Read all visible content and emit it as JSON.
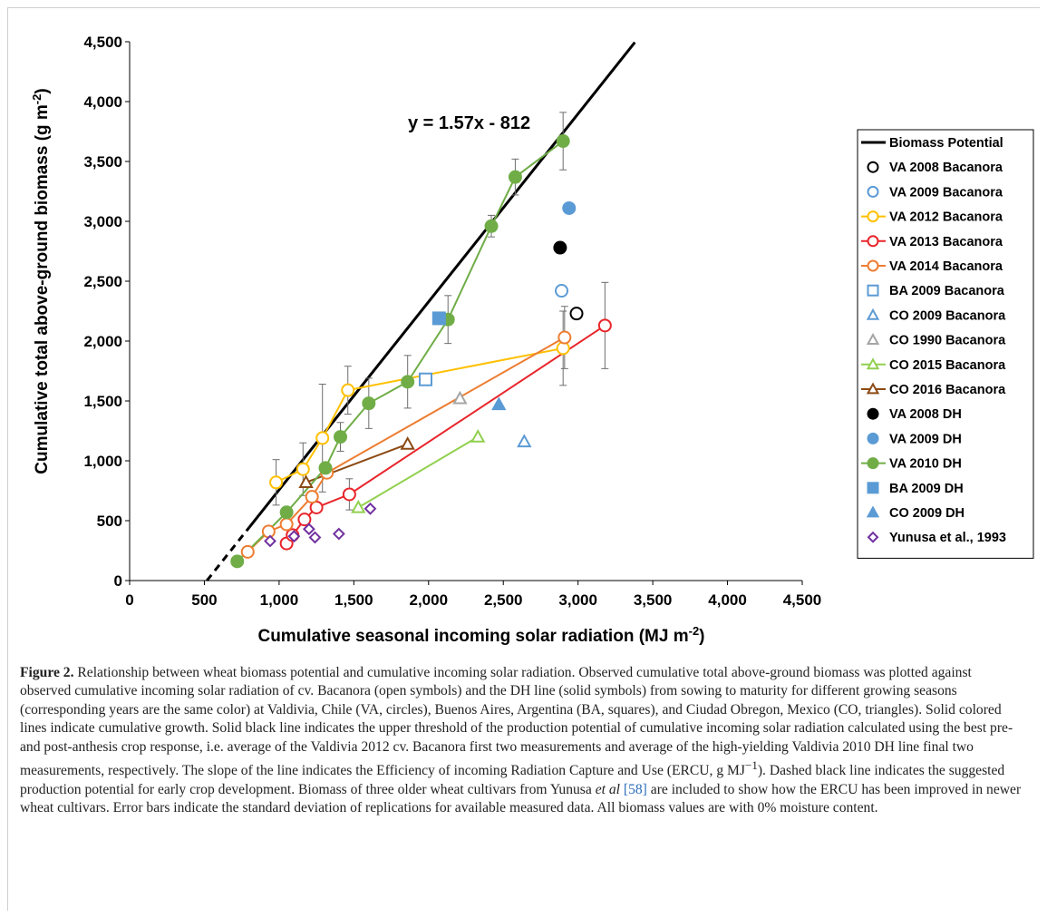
{
  "figure": {
    "caption_label": "Figure 2.",
    "caption_part1": " Relationship between wheat biomass potential and cumulative incoming solar radiation. Observed cumulative total above-ground biomass was plotted against observed cumulative incoming solar radiation of cv. Bacanora (open symbols) and the DH line (solid symbols) from sowing to maturity for different growing seasons (corresponding years are the same color) at Valdivia, Chile (VA, circles), Buenos Aires, Argentina (BA, squares), and Ciudad Obregon, Mexico (CO, triangles). Solid colored lines indicate cumulative growth. Solid black line indicates the upper threshold of the production potential of cumulative incoming solar radiation calculated using the best pre- and post-anthesis crop response, i.e. average of the Valdivia 2012 cv. Bacanora first two measurements and average of the high-yielding Valdivia 2010 DH line final two measurements, respectively. The slope of the line indicates the Efficiency of incoming Radiation Capture and Use (ERCU, g MJ",
    "caption_sup": "−1",
    "caption_part2": "). Dashed black line indicates the suggested production potential for early crop development. Biomass of three older wheat cultivars from Yunusa ",
    "caption_etal": "et al",
    "caption_ref": "[58]",
    "caption_part3": " are included to show how the ERCU has been improved in newer wheat cultivars. Error bars indicate the standard deviation of replications for available measured data. All biomass values are with 0% moisture content."
  },
  "chart_data": {
    "type": "scatter",
    "xlabel": "Cumulative seasonal incoming solar radiation (MJ m",
    "xlabel_sup": "-2",
    "xlabel_end": ")",
    "ylabel": "Cumulative total above-ground biomass (g m",
    "ylabel_sup": "-2",
    "ylabel_end": ")",
    "xlim": [
      0,
      4500
    ],
    "ylim": [
      0,
      4500
    ],
    "x_ticks": [
      0,
      500,
      1000,
      1500,
      2000,
      2500,
      3000,
      3500,
      4000,
      4500
    ],
    "x_tick_labels": [
      "0",
      "500",
      "1,000",
      "1,500",
      "2,000",
      "2,500",
      "3,000",
      "3,500",
      "4,000",
      "4,500"
    ],
    "y_ticks": [
      0,
      500,
      1000,
      1500,
      2000,
      2500,
      3000,
      3500,
      4000,
      4500
    ],
    "y_tick_labels": [
      "0",
      "500",
      "1,000",
      "1,500",
      "2,000",
      "2,500",
      "3,000",
      "3,500",
      "4,000",
      "4,500"
    ],
    "grid": false,
    "legend_position": "right",
    "equation": "y = 1.57x - 812",
    "potential_line": {
      "slope": 1.57,
      "intercept": -812,
      "solid_x": [
        800,
        3380
      ],
      "dashed_x": [
        517,
        800
      ]
    },
    "series": [
      {
        "name": "Biomass Potential",
        "marker": "line",
        "color": "#000000",
        "line": true,
        "points": []
      },
      {
        "name": "VA 2008 Bacanora",
        "marker": "circle",
        "filled": false,
        "color": "#000000",
        "line": false,
        "points": [
          [
            2990,
            2230
          ]
        ]
      },
      {
        "name": "VA 2009 Bacanora",
        "marker": "circle",
        "filled": false,
        "color": "#5b9bd5",
        "line": false,
        "points": [
          [
            2890,
            2420
          ]
        ]
      },
      {
        "name": "VA 2012 Bacanora",
        "marker": "circle",
        "filled": false,
        "color": "#ffc000",
        "line": true,
        "points": [
          [
            980,
            820
          ],
          [
            1160,
            930
          ],
          [
            1290,
            1190
          ],
          [
            1460,
            1590
          ],
          [
            2900,
            1940
          ]
        ],
        "errors": [
          [
            980,
            820,
            190
          ],
          [
            1160,
            930,
            220
          ],
          [
            1290,
            1190,
            450
          ],
          [
            1460,
            1590,
            200
          ],
          [
            2900,
            1940,
            310
          ]
        ]
      },
      {
        "name": "VA 2013 Bacanora",
        "marker": "circle",
        "filled": false,
        "color": "#e8252a",
        "line": true,
        "points": [
          [
            1050,
            310
          ],
          [
            1090,
            380
          ],
          [
            1170,
            510
          ],
          [
            1250,
            610
          ],
          [
            1470,
            720
          ],
          [
            3180,
            2130
          ]
        ],
        "errors": [
          [
            1470,
            720,
            130
          ],
          [
            3180,
            2130,
            360
          ]
        ]
      },
      {
        "name": "VA 2014 Bacanora",
        "marker": "circle",
        "filled": false,
        "color": "#ed7d31",
        "line": true,
        "points": [
          [
            790,
            240
          ],
          [
            930,
            410
          ],
          [
            1050,
            470
          ],
          [
            1220,
            700
          ],
          [
            1320,
            900
          ],
          [
            2910,
            2030
          ]
        ],
        "errors": [
          [
            2910,
            2030,
            260
          ]
        ]
      },
      {
        "name": "BA 2009 Bacanora",
        "marker": "square",
        "filled": false,
        "color": "#5b9bd5",
        "line": false,
        "points": [
          [
            1980,
            1680
          ]
        ]
      },
      {
        "name": "CO 2009 Bacanora",
        "marker": "triangle",
        "filled": false,
        "color": "#5b9bd5",
        "line": false,
        "points": [
          [
            2640,
            1160
          ]
        ]
      },
      {
        "name": "CO 1990 Bacanora",
        "marker": "triangle",
        "filled": false,
        "color": "#a5a5a5",
        "line": false,
        "points": [
          [
            2210,
            1520
          ]
        ]
      },
      {
        "name": "CO 2015 Bacanora",
        "marker": "triangle",
        "filled": false,
        "color": "#92d050",
        "line": true,
        "points": [
          [
            1530,
            610
          ],
          [
            2330,
            1200
          ]
        ]
      },
      {
        "name": "CO 2016 Bacanora",
        "marker": "triangle",
        "filled": false,
        "color": "#8b4a14",
        "line": true,
        "points": [
          [
            1180,
            820
          ],
          [
            1860,
            1140
          ]
        ]
      },
      {
        "name": "VA 2008 DH",
        "marker": "circle",
        "filled": true,
        "color": "#000000",
        "line": false,
        "points": [
          [
            2880,
            2780
          ]
        ]
      },
      {
        "name": "VA 2009 DH",
        "marker": "circle",
        "filled": true,
        "color": "#5b9bd5",
        "line": false,
        "points": [
          [
            2940,
            3110
          ]
        ]
      },
      {
        "name": "VA 2010 DH",
        "marker": "circle",
        "filled": true,
        "color": "#70ad47",
        "line": true,
        "points": [
          [
            720,
            160
          ],
          [
            1050,
            570
          ],
          [
            1310,
            940
          ],
          [
            1410,
            1200
          ],
          [
            1600,
            1480
          ],
          [
            1860,
            1660
          ],
          [
            2130,
            2180
          ],
          [
            2420,
            2960
          ],
          [
            2580,
            3370
          ],
          [
            2900,
            3670
          ]
        ],
        "errors": [
          [
            1410,
            1200,
            120
          ],
          [
            1600,
            1480,
            210
          ],
          [
            1860,
            1660,
            220
          ],
          [
            2130,
            2180,
            200
          ],
          [
            2420,
            2960,
            90
          ],
          [
            2580,
            3370,
            150
          ],
          [
            2900,
            3670,
            240
          ]
        ]
      },
      {
        "name": "BA 2009 DH",
        "marker": "square",
        "filled": true,
        "color": "#5b9bd5",
        "line": false,
        "points": [
          [
            2070,
            2190
          ]
        ]
      },
      {
        "name": "CO 2009 DH",
        "marker": "triangle",
        "filled": true,
        "color": "#5b9bd5",
        "line": false,
        "points": [
          [
            2470,
            1470
          ]
        ]
      },
      {
        "name": "Yunusa et al., 1993",
        "marker": "diamond",
        "filled": false,
        "color": "#7030a0",
        "line": false,
        "points": [
          [
            940,
            330
          ],
          [
            1100,
            370
          ],
          [
            1200,
            430
          ],
          [
            1240,
            360
          ],
          [
            1400,
            390
          ],
          [
            1610,
            600
          ]
        ]
      }
    ]
  }
}
